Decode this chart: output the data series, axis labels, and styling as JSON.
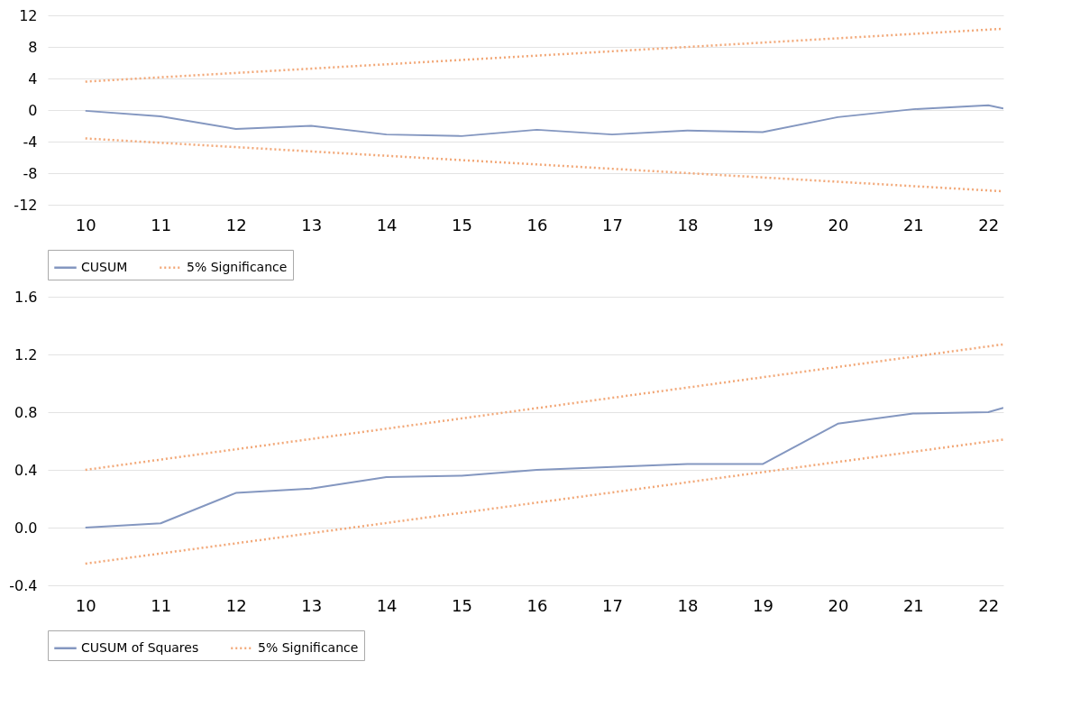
{
  "chart_data": [
    {
      "type": "line",
      "legend": "bottom",
      "grid": "y",
      "xlim": [
        9.5,
        22.2
      ],
      "xticks": [
        10,
        11,
        12,
        13,
        14,
        15,
        16,
        17,
        18,
        19,
        20,
        21,
        22
      ],
      "ylim": [
        -12,
        12
      ],
      "yticks": [
        -12,
        -8,
        -4,
        0,
        4,
        8,
        12
      ],
      "series": [
        {
          "name": "CUSUM",
          "color": "#8497c0",
          "line_style": "solid",
          "x": [
            10,
            11,
            12,
            13,
            14,
            15,
            16,
            17,
            18,
            19,
            20,
            21,
            22,
            22.2
          ],
          "values": [
            -0.1,
            -0.8,
            -2.4,
            -2.0,
            -3.1,
            -3.3,
            -2.5,
            -3.1,
            -2.6,
            -2.8,
            -0.9,
            0.1,
            0.6,
            0.2
          ]
        },
        {
          "name": "5% Significance",
          "color": "#f2a878",
          "line_style": "dotted",
          "x": [
            10,
            22.2
          ],
          "values": [
            3.6,
            10.3
          ]
        },
        {
          "color": "#f2a878",
          "line_style": "dotted",
          "x": [
            10,
            22.2
          ],
          "values": [
            -3.6,
            -10.3
          ]
        }
      ]
    },
    {
      "type": "line",
      "legend": "bottom",
      "grid": "y",
      "xlim": [
        9.5,
        22.2
      ],
      "xticks": [
        10,
        11,
        12,
        13,
        14,
        15,
        16,
        17,
        18,
        19,
        20,
        21,
        22
      ],
      "ylim": [
        -0.4,
        1.6
      ],
      "yticks": [
        -0.4,
        {
          "value": 0,
          "label": "0.0"
        },
        0.4,
        0.8,
        1.2,
        1.6
      ],
      "series": [
        {
          "name": "CUSUM of Squares",
          "color": "#8497c0",
          "line_style": "solid",
          "x": [
            10,
            11,
            12,
            13,
            14,
            15,
            16,
            17,
            18,
            19,
            20,
            21,
            22,
            22.2
          ],
          "values": [
            0.0,
            0.03,
            0.24,
            0.27,
            0.35,
            0.36,
            0.4,
            0.42,
            0.44,
            0.44,
            0.72,
            0.79,
            0.8,
            0.83
          ]
        },
        {
          "name": "5% Significance",
          "color": "#f2a878",
          "line_style": "dotted",
          "x": [
            10,
            22.2
          ],
          "values": [
            0.4,
            1.27
          ]
        },
        {
          "color": "#f2a878",
          "line_style": "dotted",
          "x": [
            10,
            22.2
          ],
          "values": [
            -0.25,
            0.61
          ]
        }
      ]
    }
  ]
}
